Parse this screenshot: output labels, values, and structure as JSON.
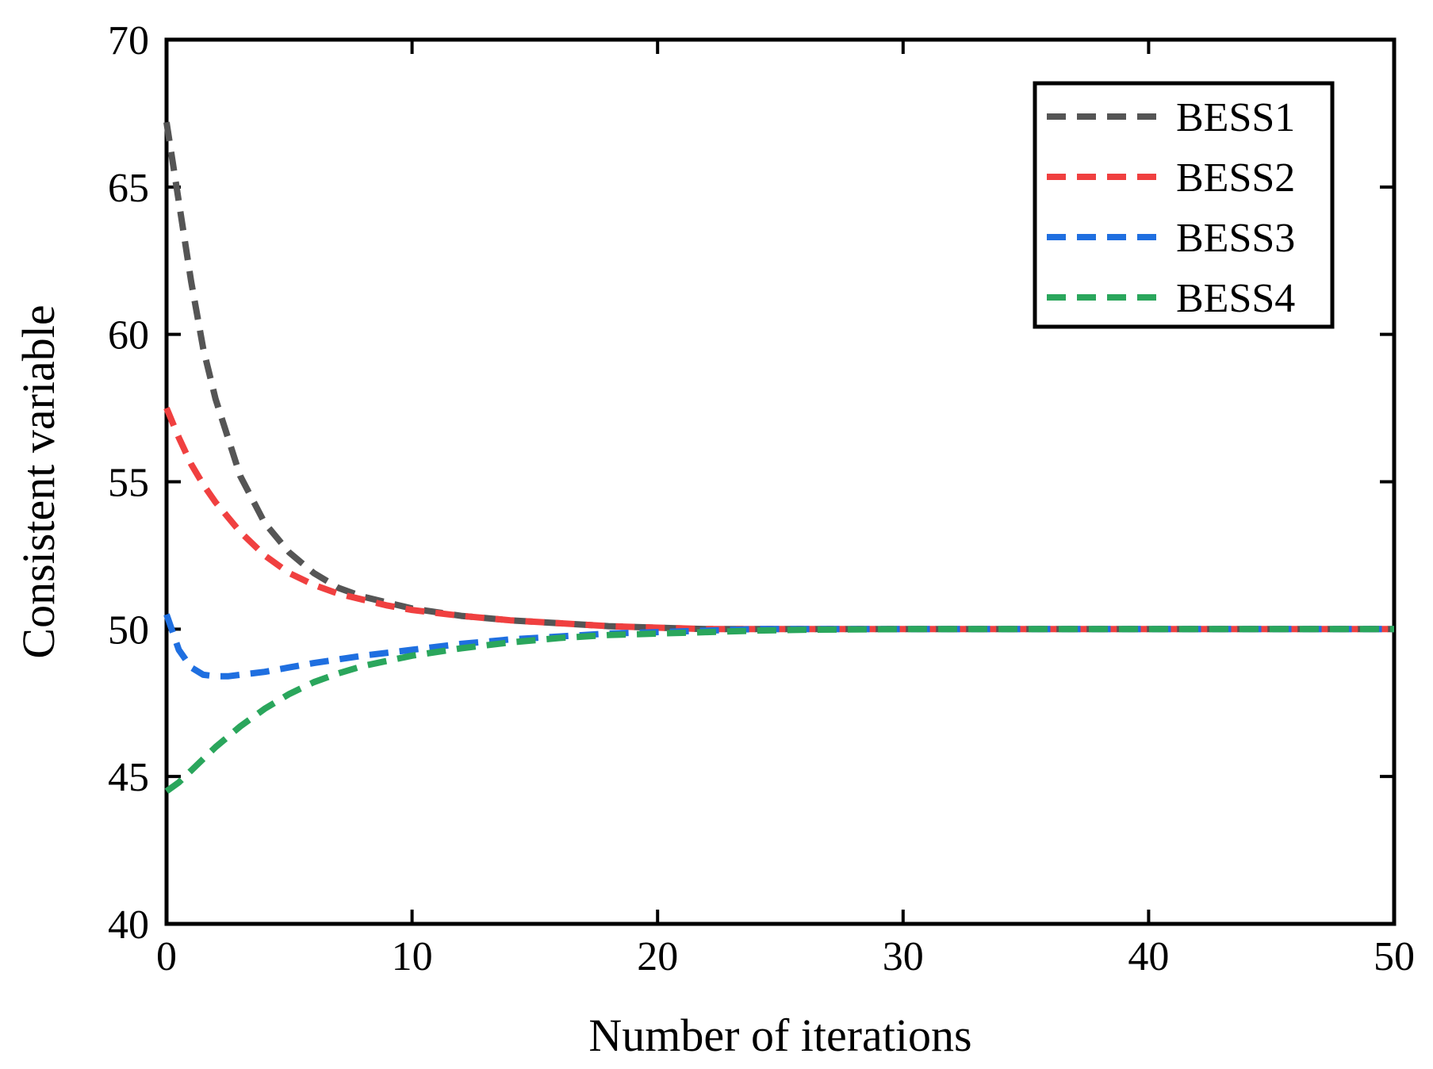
{
  "chart_data": {
    "type": "line",
    "title": "",
    "xlabel": "Number of iterations",
    "ylabel": "Consistent variable",
    "xlim": [
      0,
      50
    ],
    "ylim": [
      40,
      70
    ],
    "xticks": [
      0,
      10,
      20,
      30,
      40,
      50
    ],
    "yticks": [
      40,
      45,
      50,
      55,
      60,
      65,
      70
    ],
    "grid": false,
    "legend_position": "top-right",
    "series": [
      {
        "name": "BESS1",
        "color": "#555555",
        "x": [
          0,
          0.5,
          1,
          1.5,
          2,
          3,
          4,
          5,
          6,
          7,
          8,
          9,
          10,
          12,
          14,
          16,
          18,
          20,
          22,
          24,
          26,
          30,
          35,
          40,
          45,
          50
        ],
        "values": [
          67.2,
          64.5,
          61.8,
          59.5,
          57.8,
          55.2,
          53.6,
          52.6,
          51.9,
          51.4,
          51.1,
          50.9,
          50.7,
          50.45,
          50.3,
          50.2,
          50.1,
          50.05,
          50.0,
          50.0,
          50.0,
          50.0,
          50.0,
          50.0,
          50.0,
          50.0
        ]
      },
      {
        "name": "BESS2",
        "color": "#f04040",
        "x": [
          0,
          0.5,
          1,
          1.5,
          2,
          3,
          4,
          5,
          6,
          7,
          8,
          9,
          10,
          12,
          14,
          16,
          18,
          20,
          22,
          24,
          26,
          30,
          35,
          40,
          45,
          50
        ],
        "values": [
          57.5,
          56.5,
          55.6,
          54.9,
          54.3,
          53.3,
          52.5,
          51.9,
          51.5,
          51.2,
          51.0,
          50.8,
          50.65,
          50.45,
          50.3,
          50.2,
          50.1,
          50.05,
          50.0,
          50.0,
          50.0,
          50.0,
          50.0,
          50.0,
          50.0,
          50.0
        ]
      },
      {
        "name": "BESS3",
        "color": "#1f6fe0",
        "x": [
          0,
          0.5,
          1,
          1.5,
          2,
          2.5,
          3,
          4,
          5,
          6,
          8,
          10,
          12,
          14,
          16,
          18,
          20,
          22,
          24,
          26,
          30,
          35,
          40,
          45,
          50
        ],
        "values": [
          50.5,
          49.3,
          48.7,
          48.45,
          48.4,
          48.4,
          48.45,
          48.55,
          48.7,
          48.85,
          49.1,
          49.3,
          49.5,
          49.65,
          49.75,
          49.85,
          49.9,
          49.95,
          50.0,
          50.0,
          50.0,
          50.0,
          50.0,
          50.0,
          50.0
        ]
      },
      {
        "name": "BESS4",
        "color": "#2aa65c",
        "x": [
          0,
          0.5,
          1,
          1.5,
          2,
          3,
          4,
          5,
          6,
          7,
          8,
          10,
          12,
          14,
          16,
          18,
          20,
          22,
          24,
          26,
          30,
          35,
          40,
          45,
          50
        ],
        "values": [
          44.5,
          44.8,
          45.2,
          45.6,
          46.0,
          46.7,
          47.3,
          47.8,
          48.2,
          48.5,
          48.75,
          49.1,
          49.35,
          49.55,
          49.7,
          49.8,
          49.85,
          49.9,
          49.95,
          49.98,
          50.0,
          50.0,
          50.0,
          50.0,
          50.0
        ]
      }
    ]
  }
}
